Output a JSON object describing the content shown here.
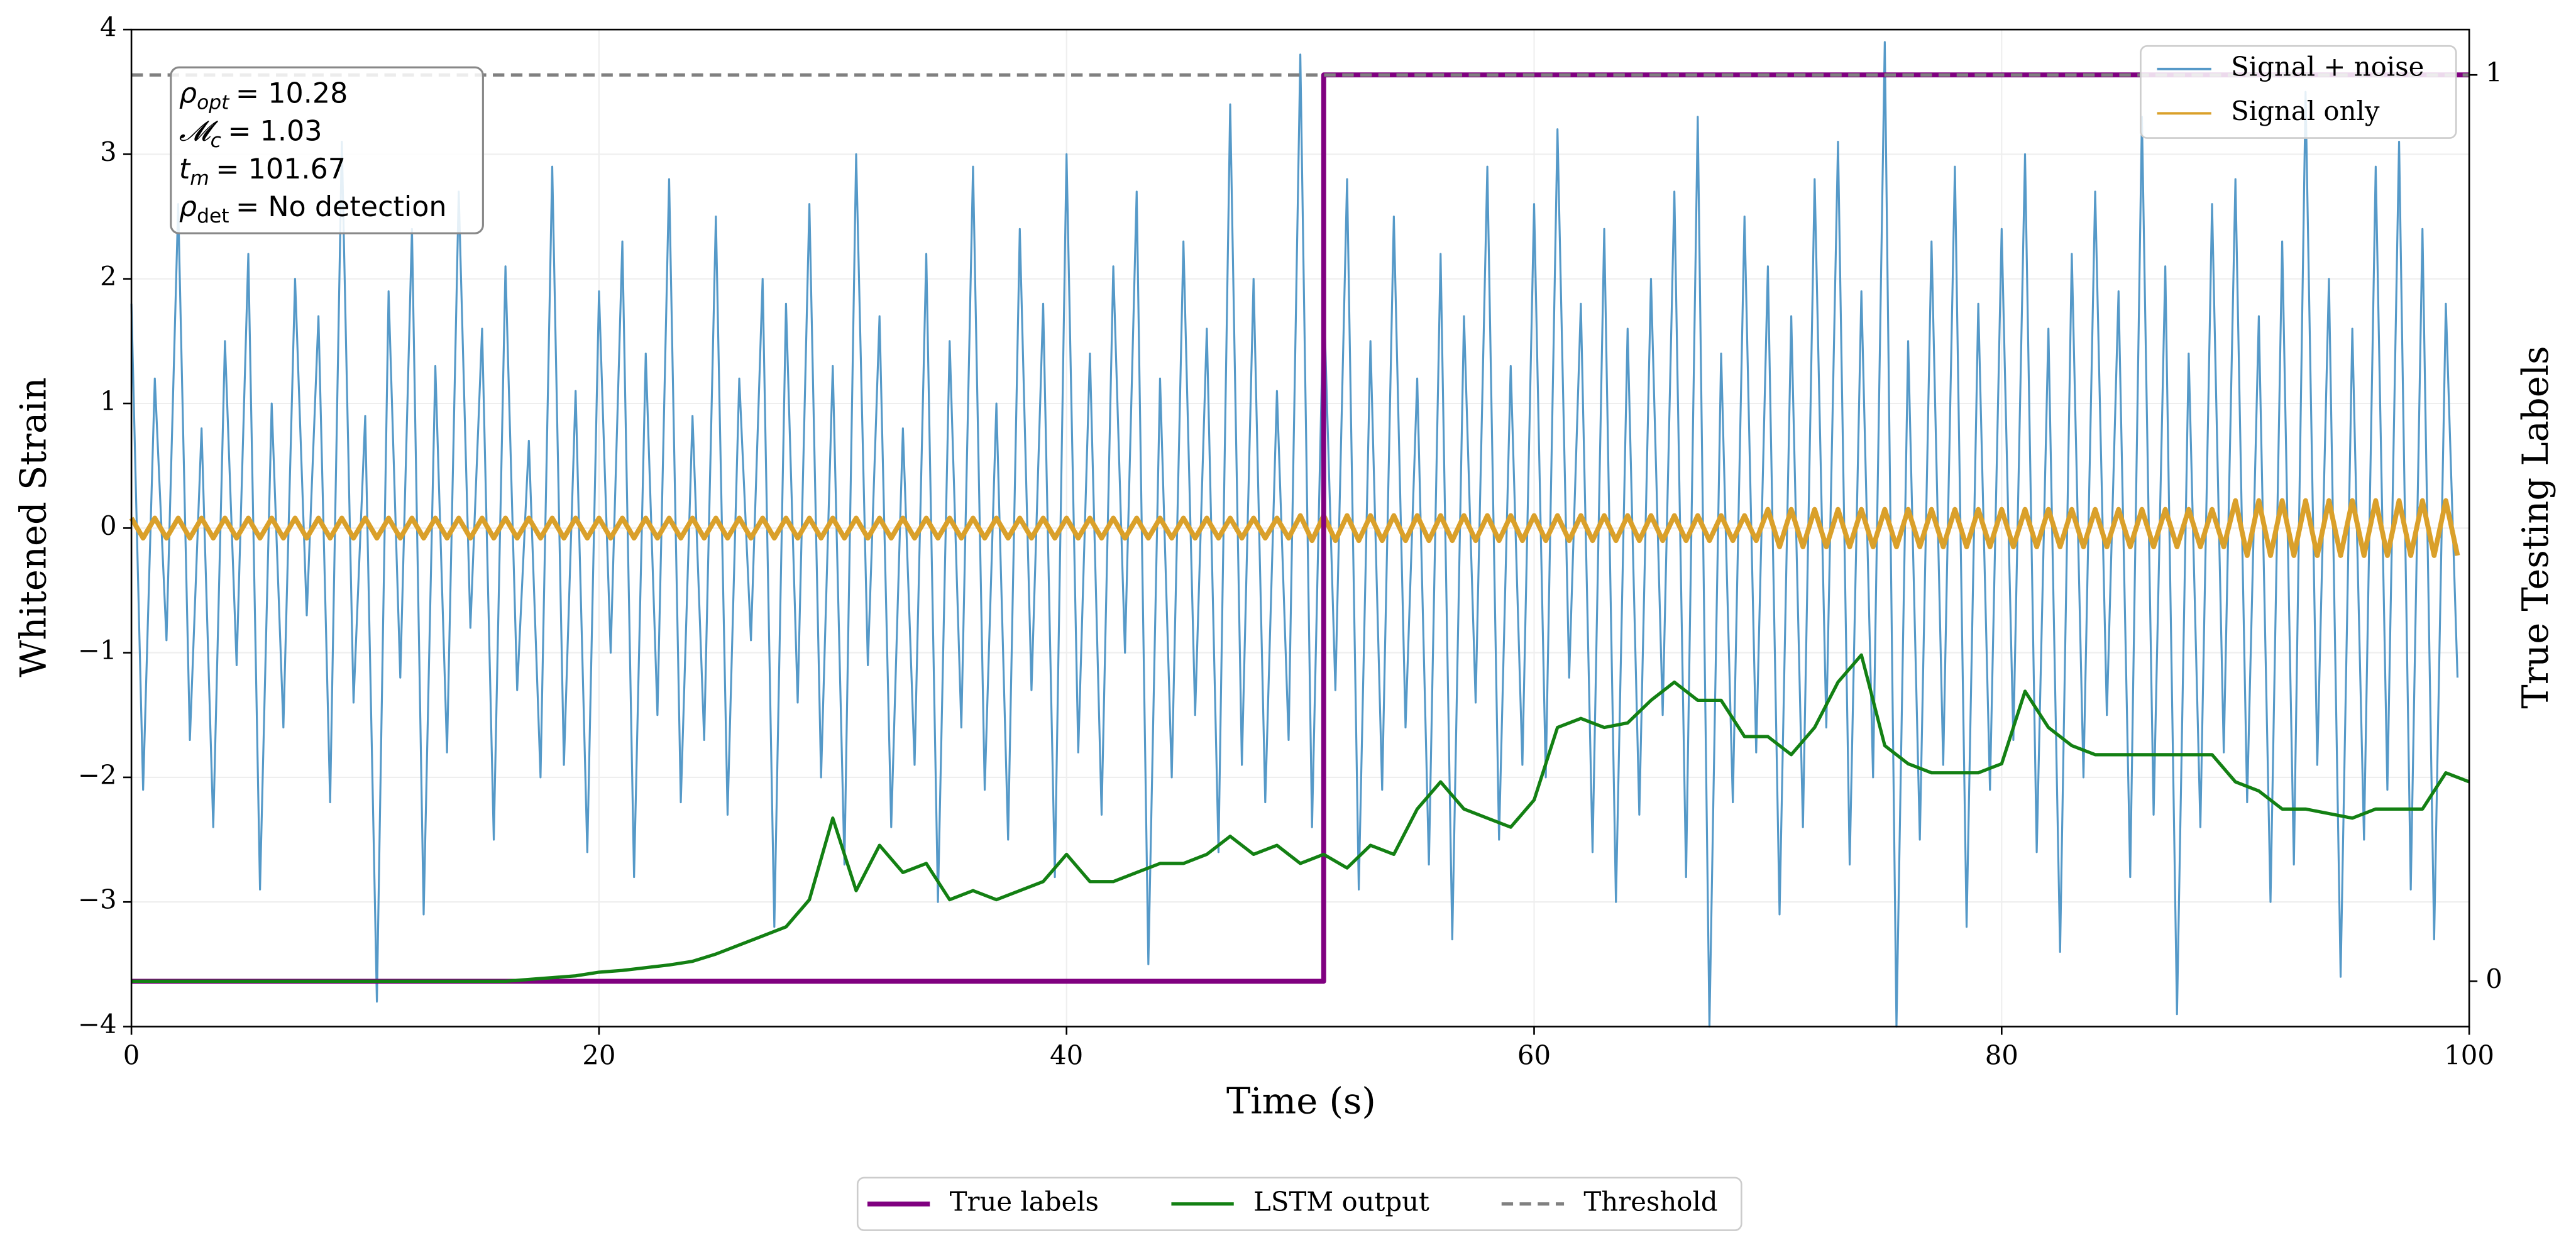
{
  "chart_data": {
    "type": "line",
    "xlabel": "Time (s)",
    "ylabel": "Whitened Strain",
    "y2label": "True Testing Labels",
    "xlim": [
      0,
      100
    ],
    "ylim": [
      -4,
      4
    ],
    "y2lim": [
      -0.05,
      1.05
    ],
    "xticks": [
      0,
      20,
      40,
      60,
      80,
      100
    ],
    "yticks": [
      {
        "value": -4,
        "label": "−4"
      },
      {
        "value": -3,
        "label": "−3"
      },
      {
        "value": -2,
        "label": "−2"
      },
      {
        "value": -1,
        "label": "−1"
      },
      0,
      1,
      2,
      3,
      4
    ],
    "y2ticks": [
      0,
      1
    ],
    "grid": true,
    "x": [
      0,
      0.5,
      1,
      1.5,
      2,
      2.5,
      3,
      3.5,
      4,
      4.5,
      5,
      5.5,
      6,
      6.5,
      7,
      7.5,
      8,
      8.5,
      9,
      9.5,
      10,
      10.5,
      11,
      11.5,
      12,
      12.5,
      13,
      13.5,
      14,
      14.5,
      15,
      15.5,
      16,
      16.5,
      17,
      17.5,
      18,
      18.5,
      19,
      19.5,
      20,
      20.5,
      21,
      21.5,
      22,
      22.5,
      23,
      23.5,
      24,
      24.5,
      25,
      25.5,
      26,
      26.5,
      27,
      27.5,
      28,
      28.5,
      29,
      29.5,
      30,
      30.5,
      31,
      31.5,
      32,
      32.5,
      33,
      33.5,
      34,
      34.5,
      35,
      35.5,
      36,
      36.5,
      37,
      37.5,
      38,
      38.5,
      39,
      39.5,
      40,
      40.5,
      41,
      41.5,
      42,
      42.5,
      43,
      43.5,
      44,
      44.5,
      45,
      45.5,
      46,
      46.5,
      47,
      47.5,
      48,
      48.5,
      49,
      49.5,
      50,
      50.5,
      51,
      51.5,
      52,
      52.5,
      53,
      53.5,
      54,
      54.5,
      55,
      55.5,
      56,
      56.5,
      57,
      57.5,
      58,
      58.5,
      59,
      59.5,
      60,
      60.5,
      61,
      61.5,
      62,
      62.5,
      63,
      63.5,
      64,
      64.5,
      65,
      65.5,
      66,
      66.5,
      67,
      67.5,
      68,
      68.5,
      69,
      69.5,
      70,
      70.5,
      71,
      71.5,
      72,
      72.5,
      73,
      73.5,
      74,
      74.5,
      75,
      75.5,
      76,
      76.5,
      77,
      77.5,
      78,
      78.5,
      79,
      79.5,
      80,
      80.5,
      81,
      81.5,
      82,
      82.5,
      83,
      83.5,
      84,
      84.5,
      85,
      85.5,
      86,
      86.5,
      87,
      87.5,
      88,
      88.5,
      89,
      89.5,
      90,
      90.5,
      91,
      91.5,
      92,
      92.5,
      93,
      93.5,
      94,
      94.5,
      95,
      95.5,
      96,
      96.5,
      97,
      97.5,
      98,
      98.5,
      99,
      99.5
    ],
    "series": [
      {
        "name": "Signal + noise",
        "color": "#5599c8",
        "axis": "y",
        "legend": "upper right",
        "width": 1.2,
        "values": [
          1.8,
          -2.1,
          1.2,
          -0.9,
          2.6,
          -1.7,
          0.8,
          -2.4,
          1.5,
          -1.1,
          2.2,
          -2.9,
          1.0,
          -1.6,
          2.0,
          -0.7,
          1.7,
          -2.2,
          3.1,
          -1.4,
          0.9,
          -3.8,
          1.9,
          -1.2,
          2.4,
          -3.1,
          1.3,
          -1.8,
          2.7,
          -0.8,
          1.6,
          -2.5,
          2.1,
          -1.3,
          0.7,
          -2.0,
          2.9,
          -1.9,
          1.1,
          -2.6,
          1.9,
          -1.0,
          2.3,
          -2.8,
          1.4,
          -1.5,
          2.8,
          -2.2,
          0.9,
          -1.7,
          2.5,
          -2.3,
          1.2,
          -0.9,
          2.0,
          -3.2,
          1.8,
          -1.4,
          2.6,
          -2.0,
          1.3,
          -2.7,
          3.0,
          -1.1,
          1.7,
          -2.4,
          0.8,
          -1.9,
          2.2,
          -3.0,
          1.5,
          -1.6,
          2.9,
          -2.1,
          1.0,
          -2.5,
          2.4,
          -1.3,
          1.8,
          -2.8,
          3.0,
          -1.8,
          1.4,
          -2.3,
          2.1,
          -1.0,
          2.7,
          -3.5,
          1.2,
          -2.0,
          2.3,
          -1.5,
          1.6,
          -2.6,
          3.4,
          -1.9,
          2.0,
          -2.2,
          1.1,
          -1.7,
          3.8,
          -2.4,
          1.9,
          -1.3,
          2.8,
          -2.9,
          1.5,
          -2.1,
          2.5,
          -1.6,
          1.2,
          -2.7,
          2.2,
          -3.3,
          1.7,
          -1.4,
          2.9,
          -2.5,
          1.3,
          -1.9,
          2.6,
          -2.0,
          3.2,
          -1.2,
          1.8,
          -2.6,
          2.4,
          -3.0,
          1.6,
          -2.3,
          2.0,
          -1.5,
          2.7,
          -2.8,
          3.3,
          -4.0,
          1.4,
          -2.2,
          2.5,
          -1.8,
          2.1,
          -3.1,
          1.7,
          -2.4,
          2.8,
          -1.6,
          3.1,
          -2.7,
          1.9,
          -2.0,
          3.9,
          -4.0,
          1.5,
          -2.5,
          2.3,
          -1.9,
          2.9,
          -3.2,
          1.8,
          -2.1,
          2.4,
          -1.7,
          3.0,
          -2.6,
          1.6,
          -3.4,
          2.2,
          -2.0,
          2.7,
          -1.5,
          1.9,
          -2.8,
          3.3,
          -2.3,
          2.1,
          -3.9,
          1.4,
          -2.4,
          2.6,
          -1.8,
          2.8,
          -2.2,
          1.7,
          -3.0,
          2.3,
          -2.7,
          3.5,
          -1.9,
          2.0,
          -3.6,
          1.6,
          -2.5,
          2.9,
          -2.1,
          3.1,
          -2.9,
          2.4,
          -3.3,
          1.8,
          -1.2
        ]
      },
      {
        "name": "Signal only",
        "color": "#daa02a",
        "axis": "y",
        "legend": "upper right",
        "width": 3,
        "values": [
          0.08,
          -0.08,
          0.08,
          -0.08,
          0.08,
          -0.08,
          0.08,
          -0.08,
          0.08,
          -0.08,
          0.08,
          -0.08,
          0.08,
          -0.08,
          0.08,
          -0.08,
          0.08,
          -0.08,
          0.08,
          -0.08,
          0.08,
          -0.08,
          0.08,
          -0.08,
          0.08,
          -0.08,
          0.08,
          -0.08,
          0.08,
          -0.08,
          0.08,
          -0.08,
          0.08,
          -0.08,
          0.08,
          -0.08,
          0.08,
          -0.08,
          0.08,
          -0.08,
          0.08,
          -0.08,
          0.08,
          -0.08,
          0.08,
          -0.08,
          0.08,
          -0.08,
          0.08,
          -0.08,
          0.08,
          -0.08,
          0.08,
          -0.08,
          0.08,
          -0.08,
          0.08,
          -0.08,
          0.08,
          -0.08,
          0.08,
          -0.08,
          0.08,
          -0.08,
          0.08,
          -0.08,
          0.08,
          -0.08,
          0.08,
          -0.08,
          0.08,
          -0.08,
          0.08,
          -0.08,
          0.08,
          -0.08,
          0.08,
          -0.08,
          0.08,
          -0.08,
          0.08,
          -0.08,
          0.08,
          -0.08,
          0.08,
          -0.08,
          0.08,
          -0.08,
          0.08,
          -0.08,
          0.08,
          -0.08,
          0.08,
          -0.08,
          0.08,
          -0.08,
          0.08,
          -0.08,
          0.08,
          -0.08,
          0.1,
          -0.1,
          0.1,
          -0.1,
          0.1,
          -0.1,
          0.1,
          -0.1,
          0.1,
          -0.1,
          0.1,
          -0.1,
          0.1,
          -0.1,
          0.1,
          -0.1,
          0.1,
          -0.1,
          0.1,
          -0.1,
          0.1,
          -0.1,
          0.1,
          -0.1,
          0.1,
          -0.1,
          0.1,
          -0.1,
          0.1,
          -0.1,
          0.1,
          -0.1,
          0.1,
          -0.1,
          0.1,
          -0.1,
          0.1,
          -0.1,
          0.1,
          -0.1,
          0.15,
          -0.15,
          0.15,
          -0.15,
          0.15,
          -0.15,
          0.15,
          -0.15,
          0.15,
          -0.15,
          0.15,
          -0.15,
          0.15,
          -0.15,
          0.15,
          -0.15,
          0.15,
          -0.15,
          0.15,
          -0.15,
          0.15,
          -0.15,
          0.15,
          -0.15,
          0.15,
          -0.15,
          0.15,
          -0.15,
          0.15,
          -0.15,
          0.15,
          -0.15,
          0.15,
          -0.15,
          0.15,
          -0.15,
          0.15,
          -0.15,
          0.15,
          -0.15,
          0.22,
          -0.22,
          0.22,
          -0.22,
          0.22,
          -0.22,
          0.22,
          -0.22,
          0.22,
          -0.22,
          0.22,
          -0.22,
          0.22,
          -0.22,
          0.22,
          -0.22,
          0.22,
          -0.22,
          0.22,
          -0.22
        ]
      },
      {
        "name": "True labels",
        "color": "#800080",
        "axis": "y2",
        "legend": "lower center",
        "width": 3,
        "x": [
          0,
          51,
          51,
          100
        ],
        "values": [
          0,
          0,
          1,
          1
        ]
      },
      {
        "name": "LSTM output",
        "color": "#138013",
        "axis": "y2",
        "legend": "lower center",
        "width": 2,
        "x": [
          0,
          1,
          2,
          3,
          4,
          5,
          6,
          7,
          8,
          9,
          10,
          11,
          12,
          13,
          14,
          15,
          16,
          17,
          18,
          19,
          20,
          21,
          22,
          23,
          24,
          25,
          26,
          27,
          28,
          29,
          30,
          31,
          32,
          33,
          34,
          35,
          36,
          37,
          38,
          39,
          40,
          41,
          42,
          43,
          44,
          45,
          46,
          47,
          48,
          49,
          50,
          51,
          52,
          53,
          54,
          55,
          56,
          57,
          58,
          59,
          60,
          61,
          62,
          63,
          64,
          65,
          66,
          67,
          68,
          69,
          70,
          71,
          72,
          73,
          74,
          75,
          76,
          77,
          78,
          79,
          80,
          81,
          82,
          83,
          84,
          85,
          86,
          87,
          88,
          89,
          90,
          91,
          92,
          93,
          94,
          95,
          96,
          97,
          98,
          99,
          100
        ],
        "values": [
          0,
          0,
          0,
          0,
          0,
          0,
          0,
          0,
          0,
          0,
          0,
          0,
          0,
          0,
          0,
          0,
          0,
          0.002,
          0.004,
          0.006,
          0.01,
          0.012,
          0.015,
          0.018,
          0.022,
          0.03,
          0.04,
          0.05,
          0.06,
          0.09,
          0.18,
          0.1,
          0.15,
          0.12,
          0.13,
          0.09,
          0.1,
          0.09,
          0.1,
          0.11,
          0.14,
          0.11,
          0.11,
          0.12,
          0.13,
          0.13,
          0.14,
          0.16,
          0.14,
          0.15,
          0.13,
          0.14,
          0.125,
          0.15,
          0.14,
          0.19,
          0.22,
          0.19,
          0.18,
          0.17,
          0.2,
          0.28,
          0.29,
          0.28,
          0.285,
          0.31,
          0.33,
          0.31,
          0.31,
          0.27,
          0.27,
          0.25,
          0.28,
          0.33,
          0.36,
          0.26,
          0.24,
          0.23,
          0.23,
          0.23,
          0.24,
          0.32,
          0.28,
          0.26,
          0.25,
          0.25,
          0.25,
          0.25,
          0.25,
          0.25,
          0.22,
          0.21,
          0.19,
          0.19,
          0.185,
          0.18,
          0.19,
          0.19,
          0.19,
          0.23,
          0.22
        ]
      },
      {
        "name": "Threshold",
        "color": "#808080",
        "axis": "y2",
        "legend": "lower center",
        "width": 2,
        "dash": true,
        "x": [
          0,
          100
        ],
        "values": [
          1,
          1
        ]
      }
    ],
    "annotations": [
      {
        "symbol": "ρ",
        "sub": "opt",
        "text": "= 10.28"
      },
      {
        "symbol": "𝓜",
        "sub": "c",
        "text": "= 1.03"
      },
      {
        "symbol": "t",
        "sub": "m",
        "text": "= 101.67"
      },
      {
        "symbol": "ρ",
        "sub": "det",
        "text": "= No detection"
      }
    ]
  }
}
